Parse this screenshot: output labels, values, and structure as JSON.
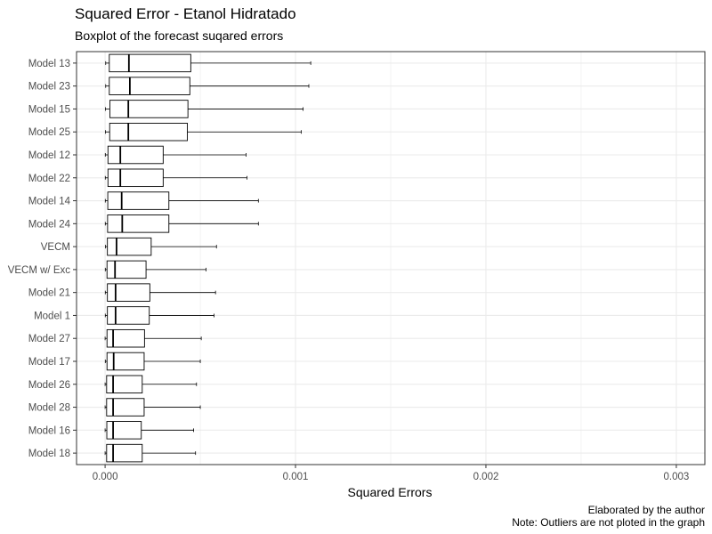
{
  "chart_data": {
    "type": "boxplot",
    "title": "Squared Error - Etanol Hidratado",
    "subtitle": "Boxplot of the forecast suqared errors",
    "xlabel": "Squared Errors",
    "ylabel": "",
    "xlim": [
      -0.00015,
      0.00315
    ],
    "x_ticks": [
      0.0,
      0.001,
      0.002,
      0.003
    ],
    "x_tick_labels": [
      "0.000",
      "0.001",
      "0.002",
      "0.003"
    ],
    "grid": true,
    "legend": "none",
    "categories": [
      "Model 13",
      "Model 23",
      "Model 15",
      "Model 25",
      "Model 12",
      "Model 22",
      "Model 14",
      "Model 24",
      "VECM",
      "VECM w/ Exc",
      "Model 21",
      "Model 1",
      "Model 27",
      "Model 17",
      "Model 26",
      "Model 28",
      "Model 16",
      "Model 18"
    ],
    "boxes": [
      {
        "label": "Model 13",
        "min": 3e-06,
        "q1": 2.2e-05,
        "median": 0.000125,
        "q3": 0.00045,
        "max": 0.00108
      },
      {
        "label": "Model 23",
        "min": 3e-06,
        "q1": 2.2e-05,
        "median": 0.00013,
        "q3": 0.000445,
        "max": 0.00107
      },
      {
        "label": "Model 15",
        "min": 2e-06,
        "q1": 2.5e-05,
        "median": 0.000122,
        "q3": 0.000435,
        "max": 0.00104
      },
      {
        "label": "Model 25",
        "min": 2e-06,
        "q1": 2.4e-05,
        "median": 0.000122,
        "q3": 0.000432,
        "max": 0.00103
      },
      {
        "label": "Model 12",
        "min": 1e-06,
        "q1": 1.5e-05,
        "median": 8e-05,
        "q3": 0.000305,
        "max": 0.00074
      },
      {
        "label": "Model 22",
        "min": 1e-06,
        "q1": 1.5e-05,
        "median": 8e-05,
        "q3": 0.000305,
        "max": 0.000745
      },
      {
        "label": "Model 14",
        "min": 1e-06,
        "q1": 1.4e-05,
        "median": 8.7e-05,
        "q3": 0.000335,
        "max": 0.000805
      },
      {
        "label": "Model 24",
        "min": 1e-06,
        "q1": 1.3e-05,
        "median": 9e-05,
        "q3": 0.000335,
        "max": 0.000805
      },
      {
        "label": "VECM",
        "min": 2e-06,
        "q1": 1.2e-05,
        "median": 6e-05,
        "q3": 0.000242,
        "max": 0.000585
      },
      {
        "label": "VECM w/ Exc",
        "min": 1e-06,
        "q1": 1e-05,
        "median": 5.2e-05,
        "q3": 0.000215,
        "max": 0.00053
      },
      {
        "label": "Model 21",
        "min": 1e-06,
        "q1": 1.2e-05,
        "median": 5.5e-05,
        "q3": 0.000235,
        "max": 0.00058
      },
      {
        "label": "Model 1",
        "min": 1e-06,
        "q1": 1.2e-05,
        "median": 5.5e-05,
        "q3": 0.000232,
        "max": 0.000572
      },
      {
        "label": "Model 27",
        "min": 0.0,
        "q1": 1e-05,
        "median": 4.2e-05,
        "q3": 0.000207,
        "max": 0.000505
      },
      {
        "label": "Model 17",
        "min": 1e-06,
        "q1": 1e-05,
        "median": 4.5e-05,
        "q3": 0.000205,
        "max": 0.0005
      },
      {
        "label": "Model 26",
        "min": 0.0,
        "q1": 8e-06,
        "median": 4.2e-05,
        "q3": 0.000195,
        "max": 0.00048
      },
      {
        "label": "Model 28",
        "min": 0.0,
        "q1": 8e-06,
        "median": 4.2e-05,
        "q3": 0.000205,
        "max": 0.0005
      },
      {
        "label": "Model 16",
        "min": 0.0,
        "q1": 9e-06,
        "median": 4.2e-05,
        "q3": 0.00019,
        "max": 0.000465
      },
      {
        "label": "Model 18",
        "min": 0.0,
        "q1": 8e-06,
        "median": 4.2e-05,
        "q3": 0.000195,
        "max": 0.000475
      }
    ],
    "captions": [
      "Elaborated by the author",
      "Note: Outliers are not ploted in the graph"
    ]
  },
  "colors": {
    "box_fill": "#ffffff",
    "stroke": "#000000",
    "grid": "#ebebeb",
    "panel_border": "#333333",
    "axis_text": "#4d4d4d"
  }
}
